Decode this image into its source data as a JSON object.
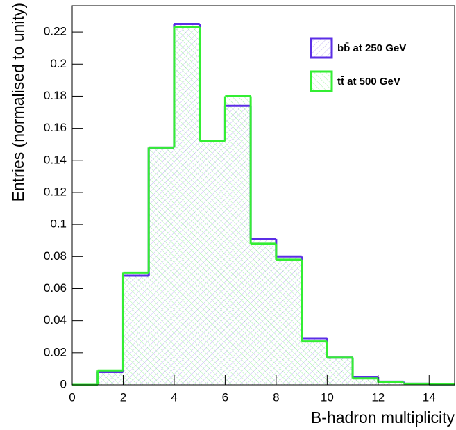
{
  "chart_data": {
    "type": "histogram",
    "bins": [
      0,
      1,
      2,
      3,
      4,
      5,
      6,
      7,
      8,
      9,
      10,
      11,
      12,
      13,
      14,
      15
    ],
    "series": [
      {
        "name": "bb̄ at 250 GeV",
        "color": "#5b2ee6",
        "values": [
          0,
          0.008,
          0.068,
          0.148,
          0.225,
          0.152,
          0.174,
          0.091,
          0.08,
          0.029,
          0.017,
          0.005,
          0.002,
          0.0007,
          0.0003
        ]
      },
      {
        "name": "tt̄ at 500 GeV",
        "color": "#33ee33",
        "values": [
          0,
          0.009,
          0.07,
          0.148,
          0.223,
          0.152,
          0.18,
          0.088,
          0.078,
          0.027,
          0.017,
          0.004,
          0.0015,
          0.0007,
          0.0003
        ]
      }
    ],
    "xlabel": "B-hadron multiplicity",
    "ylabel": "Entries (normalised to unity)",
    "xlim": [
      0,
      15
    ],
    "ylim": [
      0,
      0.2365
    ],
    "xticks": [
      0,
      2,
      4,
      6,
      8,
      10,
      12,
      14
    ],
    "yticks": [
      0,
      0.02,
      0.04,
      0.06,
      0.08,
      0.1,
      0.12,
      0.14,
      0.16,
      0.18,
      0.2,
      0.22
    ],
    "legend": "top-right"
  }
}
